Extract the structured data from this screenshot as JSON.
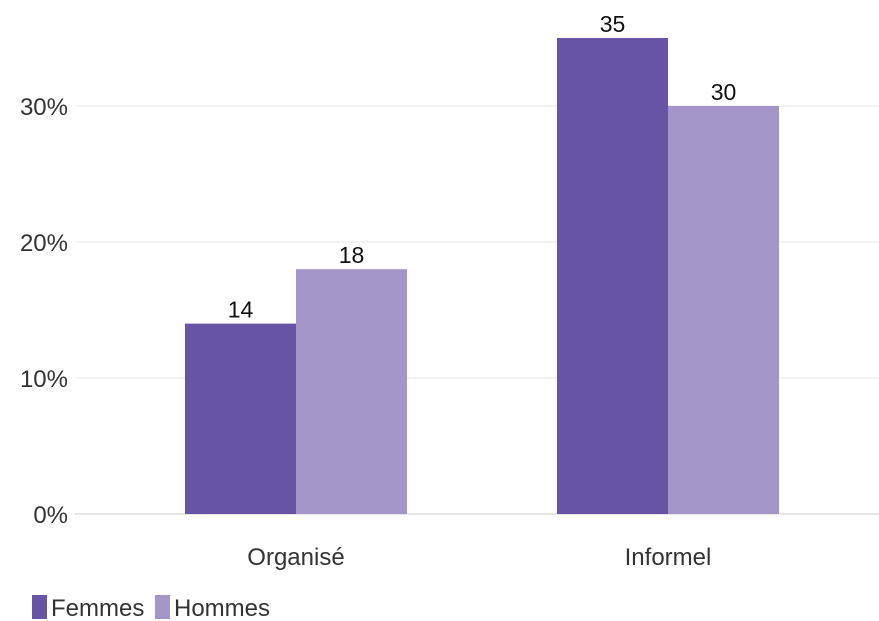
{
  "chart_data": {
    "type": "bar",
    "categories": [
      "Organisé",
      "Informel"
    ],
    "series": [
      {
        "name": "Femmes",
        "values": [
          14,
          35
        ],
        "color": "#6754a4"
      },
      {
        "name": "Hommes",
        "values": [
          18,
          30
        ],
        "color": "#a395c7"
      }
    ],
    "ylim": [
      0,
      35
    ],
    "yticks": [
      0,
      10,
      20,
      30
    ],
    "ytick_labels": [
      "0%",
      "10%",
      "20%",
      "30%"
    ],
    "data_labels": [
      [
        "14",
        "35"
      ],
      [
        "18",
        "30"
      ]
    ],
    "grid": true,
    "legend_position": "bottom-left"
  }
}
